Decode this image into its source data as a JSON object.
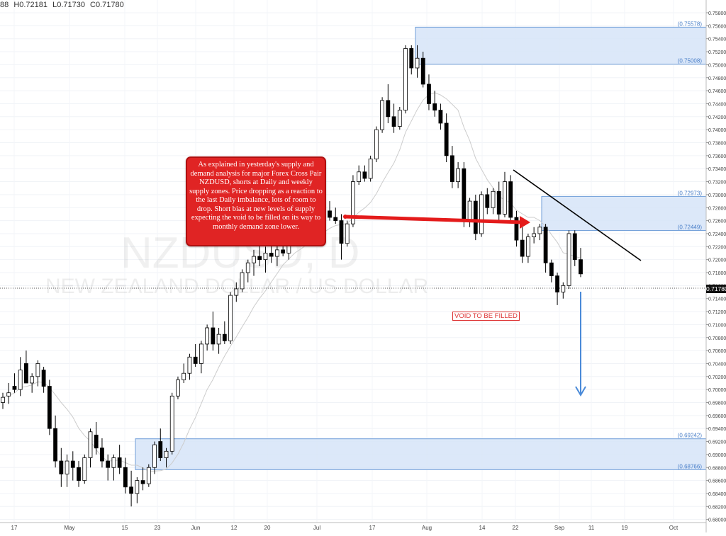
{
  "ohlc_readout": {
    "open": "88",
    "high": "H0.72181",
    "low": "L0.71730",
    "close": "C0.71780"
  },
  "watermark": {
    "symbol": "NZDUSD, D",
    "name": "NEW ZEALAND DOLLAR / US DOLLAR"
  },
  "annotation": {
    "text": "As explained in yesterday's supply and demand analysis for major Forex Cross Pair NZDUSD, shorts at Daily and weekly supply zones. Price dropping as a reaction to the last Daily imbalance, lots of room to drop. Short bias at new levels of supply expecting the void to be filled on its way to monthly demand zone lower."
  },
  "void_label": "VOID TO BE FILLED",
  "current_price": "0.71780",
  "colors": {
    "zone_fill": "#d6e4f8",
    "zone_border": "#6f9ed8",
    "arrow_red": "#e41b1b",
    "arrow_blue": "#4a8ad8",
    "candle_down": "#000000",
    "candle_up": "#ffffff",
    "ma_line": "#cccccc",
    "trendline": "#000000"
  },
  "chart_data": {
    "type": "candlestick",
    "title": "NZDUSD, D",
    "subtitle": "NEW ZEALAND DOLLAR / US DOLLAR",
    "ylim": [
      0.68,
      0.759
    ],
    "y_ticks": [
      "0.75800",
      "0.75600",
      "0.75400",
      "0.75200",
      "0.75000",
      "0.74800",
      "0.74600",
      "0.74400",
      "0.74200",
      "0.74000",
      "0.73800",
      "0.73600",
      "0.73400",
      "0.73200",
      "0.73000",
      "0.72800",
      "0.72600",
      "0.72400",
      "0.72200",
      "0.72000",
      "0.71800",
      "0.71600",
      "0.71400",
      "0.71200",
      "0.71000",
      "0.70800",
      "0.70600",
      "0.70400",
      "0.70200",
      "0.70000",
      "0.69800",
      "0.69600",
      "0.69400",
      "0.69200",
      "0.69000",
      "0.68800",
      "0.68600",
      "0.68400",
      "0.68200",
      "0.68000"
    ],
    "x_ticks": [
      "17",
      "May",
      "15",
      "23",
      "Jun",
      "12",
      "20",
      "Jul",
      "17",
      "Aug",
      "14",
      "22",
      "Sep",
      "11",
      "19",
      "Oct"
    ],
    "zones": [
      {
        "label_top": "(0.75578)",
        "label_bottom": "(0.75008)",
        "top": 0.75578,
        "bottom": 0.75008
      },
      {
        "label_top": "(0.72973)",
        "label_bottom": "(0.72449)",
        "top": 0.72973,
        "bottom": 0.72449
      },
      {
        "label_top": "(0.69242)",
        "label_bottom": "(0.68766)",
        "top": 0.69242,
        "bottom": 0.68766
      }
    ],
    "candles": [
      {
        "o": 0.698,
        "h": 0.6995,
        "l": 0.697,
        "c": 0.6988
      },
      {
        "o": 0.699,
        "h": 0.701,
        "l": 0.6978,
        "c": 0.6995
      },
      {
        "o": 0.7005,
        "h": 0.7025,
        "l": 0.6995,
        "c": 0.7
      },
      {
        "o": 0.7,
        "h": 0.705,
        "l": 0.699,
        "c": 0.703
      },
      {
        "o": 0.704,
        "h": 0.706,
        "l": 0.701,
        "c": 0.701
      },
      {
        "o": 0.701,
        "h": 0.7025,
        "l": 0.6995,
        "c": 0.702
      },
      {
        "o": 0.702,
        "h": 0.7045,
        "l": 0.7005,
        "c": 0.704
      },
      {
        "o": 0.703,
        "h": 0.7035,
        "l": 0.6995,
        "c": 0.7005
      },
      {
        "o": 0.7005,
        "h": 0.7015,
        "l": 0.693,
        "c": 0.694
      },
      {
        "o": 0.694,
        "h": 0.696,
        "l": 0.688,
        "c": 0.689
      },
      {
        "o": 0.689,
        "h": 0.691,
        "l": 0.685,
        "c": 0.687
      },
      {
        "o": 0.687,
        "h": 0.69,
        "l": 0.685,
        "c": 0.689
      },
      {
        "o": 0.689,
        "h": 0.6905,
        "l": 0.686,
        "c": 0.688
      },
      {
        "o": 0.688,
        "h": 0.689,
        "l": 0.685,
        "c": 0.686
      },
      {
        "o": 0.686,
        "h": 0.69,
        "l": 0.6855,
        "c": 0.6895
      },
      {
        "o": 0.6895,
        "h": 0.694,
        "l": 0.688,
        "c": 0.6935
      },
      {
        "o": 0.693,
        "h": 0.695,
        "l": 0.69,
        "c": 0.691
      },
      {
        "o": 0.691,
        "h": 0.6925,
        "l": 0.688,
        "c": 0.689
      },
      {
        "o": 0.689,
        "h": 0.69,
        "l": 0.686,
        "c": 0.688
      },
      {
        "o": 0.688,
        "h": 0.69,
        "l": 0.686,
        "c": 0.6895
      },
      {
        "o": 0.6895,
        "h": 0.6915,
        "l": 0.687,
        "c": 0.688
      },
      {
        "o": 0.688,
        "h": 0.6895,
        "l": 0.684,
        "c": 0.685
      },
      {
        "o": 0.685,
        "h": 0.6875,
        "l": 0.682,
        "c": 0.684
      },
      {
        "o": 0.684,
        "h": 0.6865,
        "l": 0.6825,
        "c": 0.686
      },
      {
        "o": 0.686,
        "h": 0.688,
        "l": 0.6845,
        "c": 0.6855
      },
      {
        "o": 0.6855,
        "h": 0.6885,
        "l": 0.685,
        "c": 0.688
      },
      {
        "o": 0.688,
        "h": 0.692,
        "l": 0.687,
        "c": 0.6915
      },
      {
        "o": 0.692,
        "h": 0.694,
        "l": 0.689,
        "c": 0.6895
      },
      {
        "o": 0.6895,
        "h": 0.691,
        "l": 0.688,
        "c": 0.6905
      },
      {
        "o": 0.6905,
        "h": 0.6995,
        "l": 0.69,
        "c": 0.699
      },
      {
        "o": 0.699,
        "h": 0.702,
        "l": 0.6985,
        "c": 0.7015
      },
      {
        "o": 0.7015,
        "h": 0.704,
        "l": 0.701,
        "c": 0.7025
      },
      {
        "o": 0.7025,
        "h": 0.7055,
        "l": 0.7015,
        "c": 0.705
      },
      {
        "o": 0.705,
        "h": 0.707,
        "l": 0.7035,
        "c": 0.704
      },
      {
        "o": 0.704,
        "h": 0.7075,
        "l": 0.7025,
        "c": 0.707
      },
      {
        "o": 0.707,
        "h": 0.71,
        "l": 0.706,
        "c": 0.7095
      },
      {
        "o": 0.7095,
        "h": 0.712,
        "l": 0.706,
        "c": 0.707
      },
      {
        "o": 0.707,
        "h": 0.7095,
        "l": 0.7055,
        "c": 0.7085
      },
      {
        "o": 0.7085,
        "h": 0.7105,
        "l": 0.707,
        "c": 0.7075
      },
      {
        "o": 0.7075,
        "h": 0.715,
        "l": 0.707,
        "c": 0.7145
      },
      {
        "o": 0.7145,
        "h": 0.7165,
        "l": 0.7135,
        "c": 0.7155
      },
      {
        "o": 0.7155,
        "h": 0.7185,
        "l": 0.715,
        "c": 0.718
      },
      {
        "o": 0.718,
        "h": 0.72,
        "l": 0.7165,
        "c": 0.7195
      },
      {
        "o": 0.7195,
        "h": 0.7215,
        "l": 0.7175,
        "c": 0.7205
      },
      {
        "o": 0.7205,
        "h": 0.7225,
        "l": 0.719,
        "c": 0.72
      },
      {
        "o": 0.72,
        "h": 0.722,
        "l": 0.718,
        "c": 0.721
      },
      {
        "o": 0.721,
        "h": 0.7235,
        "l": 0.7195,
        "c": 0.7205
      },
      {
        "o": 0.7205,
        "h": 0.7225,
        "l": 0.719,
        "c": 0.7215
      },
      {
        "o": 0.7215,
        "h": 0.724,
        "l": 0.7205,
        "c": 0.721
      },
      {
        "o": 0.721,
        "h": 0.7245,
        "l": 0.72,
        "c": 0.7235
      },
      {
        "o": 0.7235,
        "h": 0.726,
        "l": 0.7225,
        "c": 0.7245
      },
      {
        "o": 0.7245,
        "h": 0.7265,
        "l": 0.723,
        "c": 0.724
      },
      {
        "o": 0.724,
        "h": 0.727,
        "l": 0.723,
        "c": 0.726
      },
      {
        "o": 0.726,
        "h": 0.728,
        "l": 0.724,
        "c": 0.727
      },
      {
        "o": 0.727,
        "h": 0.7285,
        "l": 0.7255,
        "c": 0.7265
      },
      {
        "o": 0.7265,
        "h": 0.728,
        "l": 0.7255,
        "c": 0.7275
      },
      {
        "o": 0.7275,
        "h": 0.729,
        "l": 0.726,
        "c": 0.7265
      },
      {
        "o": 0.7265,
        "h": 0.728,
        "l": 0.7255,
        "c": 0.726
      },
      {
        "o": 0.726,
        "h": 0.727,
        "l": 0.72,
        "c": 0.7225
      },
      {
        "o": 0.7225,
        "h": 0.726,
        "l": 0.722,
        "c": 0.7255
      },
      {
        "o": 0.7255,
        "h": 0.733,
        "l": 0.725,
        "c": 0.732
      },
      {
        "o": 0.732,
        "h": 0.7345,
        "l": 0.7315,
        "c": 0.7335
      },
      {
        "o": 0.7335,
        "h": 0.7345,
        "l": 0.732,
        "c": 0.7325
      },
      {
        "o": 0.7325,
        "h": 0.736,
        "l": 0.732,
        "c": 0.7355
      },
      {
        "o": 0.7355,
        "h": 0.7405,
        "l": 0.735,
        "c": 0.74
      },
      {
        "o": 0.74,
        "h": 0.745,
        "l": 0.7395,
        "c": 0.7445
      },
      {
        "o": 0.7445,
        "h": 0.747,
        "l": 0.741,
        "c": 0.742
      },
      {
        "o": 0.742,
        "h": 0.744,
        "l": 0.7395,
        "c": 0.7405
      },
      {
        "o": 0.7405,
        "h": 0.7435,
        "l": 0.74,
        "c": 0.743
      },
      {
        "o": 0.743,
        "h": 0.753,
        "l": 0.7425,
        "c": 0.7525
      },
      {
        "o": 0.7525,
        "h": 0.753,
        "l": 0.7485,
        "c": 0.7495
      },
      {
        "o": 0.7495,
        "h": 0.753,
        "l": 0.748,
        "c": 0.751
      },
      {
        "o": 0.751,
        "h": 0.752,
        "l": 0.7465,
        "c": 0.747
      },
      {
        "o": 0.747,
        "h": 0.7485,
        "l": 0.743,
        "c": 0.744
      },
      {
        "o": 0.744,
        "h": 0.746,
        "l": 0.742,
        "c": 0.743
      },
      {
        "o": 0.743,
        "h": 0.744,
        "l": 0.74,
        "c": 0.741
      },
      {
        "o": 0.741,
        "h": 0.7425,
        "l": 0.735,
        "c": 0.736
      },
      {
        "o": 0.736,
        "h": 0.7375,
        "l": 0.731,
        "c": 0.732
      },
      {
        "o": 0.732,
        "h": 0.735,
        "l": 0.731,
        "c": 0.734
      },
      {
        "o": 0.734,
        "h": 0.735,
        "l": 0.725,
        "c": 0.726
      },
      {
        "o": 0.726,
        "h": 0.7295,
        "l": 0.725,
        "c": 0.729
      },
      {
        "o": 0.729,
        "h": 0.73,
        "l": 0.723,
        "c": 0.724
      },
      {
        "o": 0.724,
        "h": 0.7305,
        "l": 0.7235,
        "c": 0.73
      },
      {
        "o": 0.73,
        "h": 0.731,
        "l": 0.727,
        "c": 0.728
      },
      {
        "o": 0.728,
        "h": 0.731,
        "l": 0.727,
        "c": 0.7305
      },
      {
        "o": 0.7305,
        "h": 0.732,
        "l": 0.726,
        "c": 0.727
      },
      {
        "o": 0.727,
        "h": 0.7335,
        "l": 0.7265,
        "c": 0.732
      },
      {
        "o": 0.732,
        "h": 0.733,
        "l": 0.726,
        "c": 0.7265
      },
      {
        "o": 0.7265,
        "h": 0.7275,
        "l": 0.722,
        "c": 0.723
      },
      {
        "o": 0.723,
        "h": 0.725,
        "l": 0.7195,
        "c": 0.7205
      },
      {
        "o": 0.7205,
        "h": 0.724,
        "l": 0.7195,
        "c": 0.7235
      },
      {
        "o": 0.7235,
        "h": 0.725,
        "l": 0.7225,
        "c": 0.724
      },
      {
        "o": 0.724,
        "h": 0.7255,
        "l": 0.723,
        "c": 0.725
      },
      {
        "o": 0.725,
        "h": 0.7255,
        "l": 0.718,
        "c": 0.7195
      },
      {
        "o": 0.7195,
        "h": 0.72,
        "l": 0.7165,
        "c": 0.7175
      },
      {
        "o": 0.7175,
        "h": 0.718,
        "l": 0.713,
        "c": 0.715
      },
      {
        "o": 0.715,
        "h": 0.7165,
        "l": 0.714,
        "c": 0.716
      },
      {
        "o": 0.716,
        "h": 0.7245,
        "l": 0.7155,
        "c": 0.724
      },
      {
        "o": 0.724,
        "h": 0.7245,
        "l": 0.719,
        "c": 0.72
      },
      {
        "o": 0.72,
        "h": 0.7218,
        "l": 0.7173,
        "c": 0.7178
      }
    ]
  }
}
